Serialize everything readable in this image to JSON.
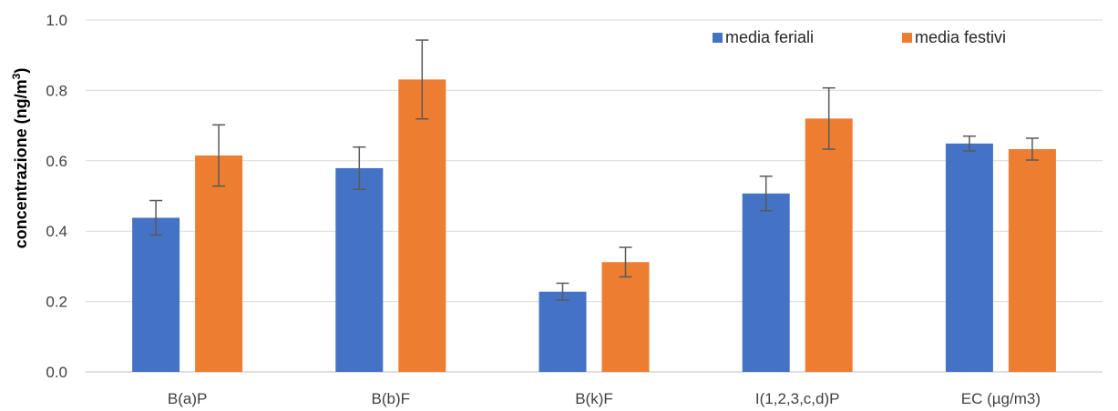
{
  "chart_data": {
    "type": "bar",
    "title": "",
    "xlabel": "",
    "ylabel": "concentrazione (ng/m",
    "ylabel_superscript": "3",
    "ylabel_close": ")",
    "categories": [
      "B(a)P",
      "B(b)F",
      "B(k)F",
      "I(1,2,3,c,d)P",
      "EC (µg/m3)"
    ],
    "ylim": [
      0,
      1.0
    ],
    "yticks": [
      "0.0",
      "0.2",
      "0.4",
      "0.6",
      "0.8",
      "1.0"
    ],
    "grid": true,
    "legend_position": "top-right",
    "series": [
      {
        "name": "media feriali",
        "color": "#4472C4",
        "values": [
          0.438,
          0.579,
          0.228,
          0.507,
          0.649
        ],
        "errors": [
          0.049,
          0.06,
          0.024,
          0.049,
          0.021
        ]
      },
      {
        "name": "media festivi",
        "color": "#ED7D31",
        "values": [
          0.615,
          0.831,
          0.312,
          0.72,
          0.633
        ],
        "errors": [
          0.087,
          0.112,
          0.042,
          0.087,
          0.031
        ]
      }
    ],
    "error_bar_color": "#595959"
  }
}
